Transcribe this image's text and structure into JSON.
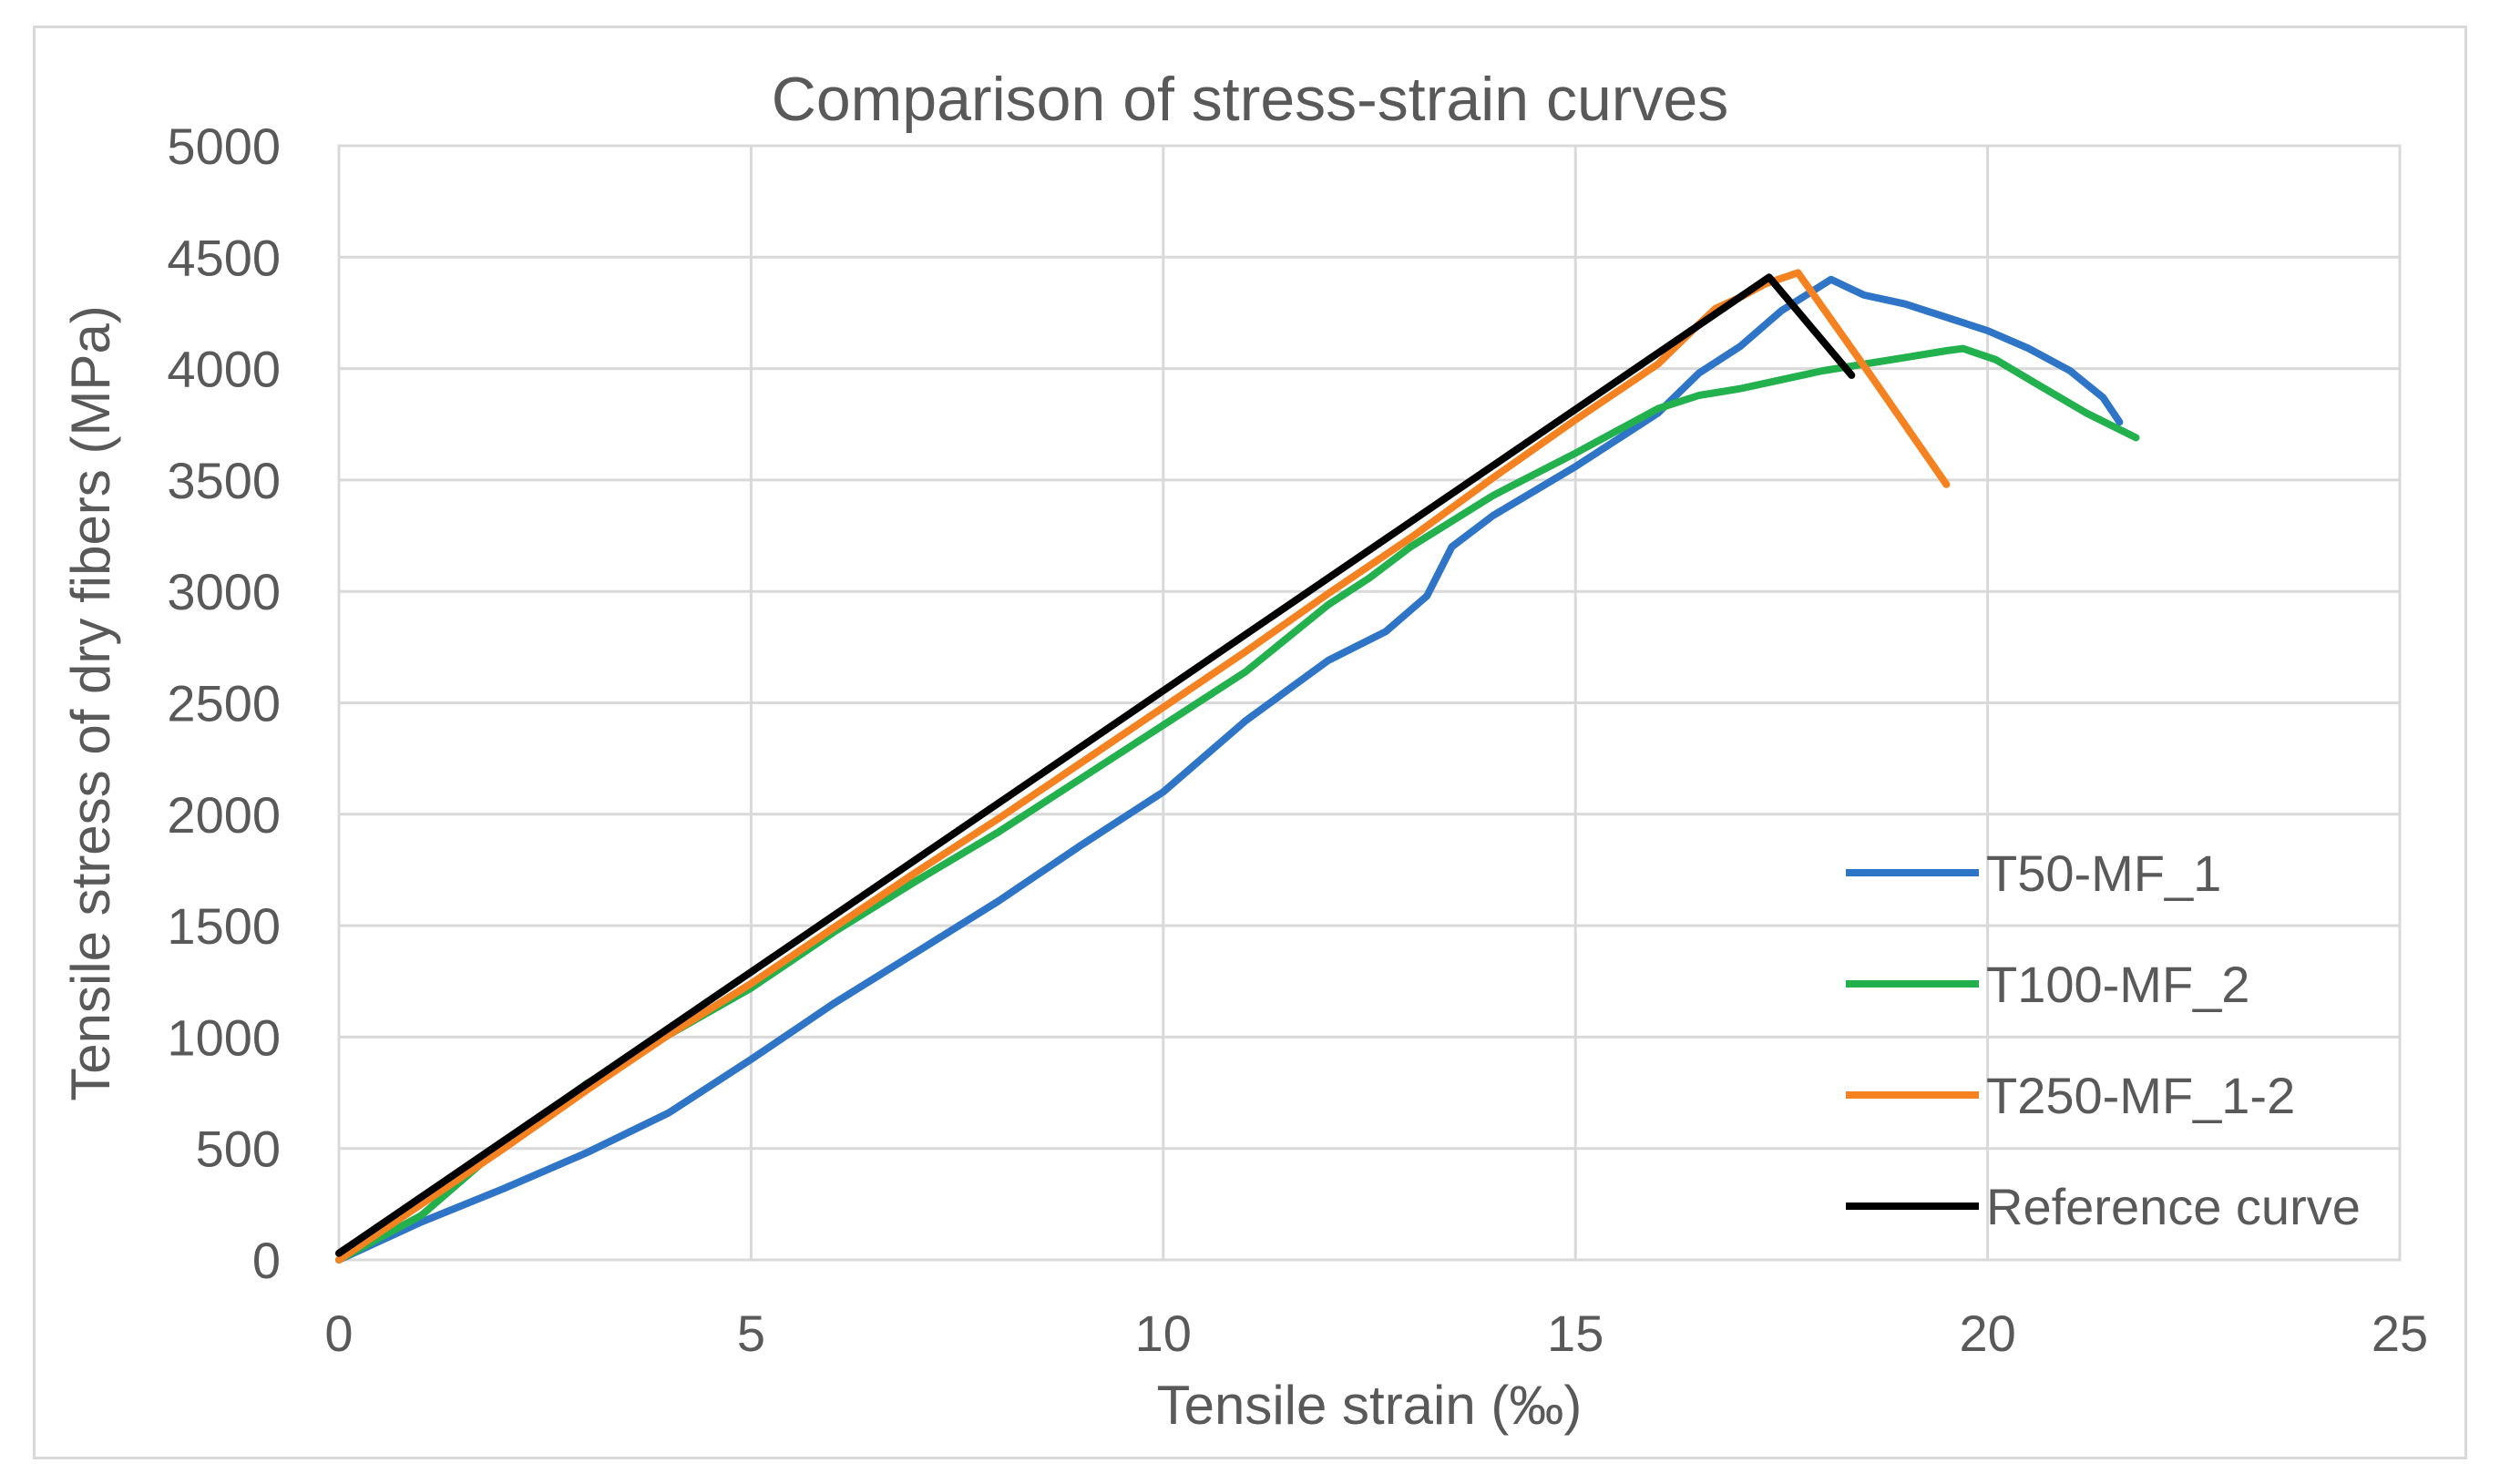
{
  "chart_data": {
    "type": "line",
    "title": "Comparison of stress-strain curves",
    "xlabel": "Tensile strain (‰)",
    "ylabel": "Tensile stress of dry fibers (MPa)",
    "xlim": [
      0,
      25
    ],
    "ylim": [
      0,
      5000
    ],
    "xticks": [
      0,
      5,
      10,
      15,
      20,
      25
    ],
    "yticks": [
      0,
      500,
      1000,
      1500,
      2000,
      2500,
      3000,
      3500,
      4000,
      4500,
      5000
    ],
    "grid": true,
    "legend_position": "bottom-right",
    "series": [
      {
        "name": "T50-MF_1",
        "color": "#2e75c8",
        "points": [
          [
            0,
            0
          ],
          [
            1,
            170
          ],
          [
            2,
            320
          ],
          [
            3,
            480
          ],
          [
            4,
            660
          ],
          [
            5,
            900
          ],
          [
            6,
            1150
          ],
          [
            7,
            1380
          ],
          [
            8,
            1610
          ],
          [
            9,
            1860
          ],
          [
            10,
            2100
          ],
          [
            11,
            2420
          ],
          [
            12,
            2690
          ],
          [
            12.7,
            2820
          ],
          [
            13.2,
            2980
          ],
          [
            13.5,
            3200
          ],
          [
            14,
            3340
          ],
          [
            15,
            3560
          ],
          [
            16,
            3800
          ],
          [
            16.5,
            3980
          ],
          [
            17,
            4100
          ],
          [
            17.5,
            4260
          ],
          [
            18.1,
            4400
          ],
          [
            18.5,
            4330
          ],
          [
            19,
            4290
          ],
          [
            19.5,
            4230
          ],
          [
            20,
            4170
          ],
          [
            20.5,
            4090
          ],
          [
            21,
            3990
          ],
          [
            21.4,
            3870
          ],
          [
            21.6,
            3760
          ]
        ]
      },
      {
        "name": "T100-MF_2",
        "color": "#22b14c",
        "points": [
          [
            0,
            0
          ],
          [
            1,
            200
          ],
          [
            2,
            520
          ],
          [
            3,
            790
          ],
          [
            4,
            1010
          ],
          [
            5,
            1220
          ],
          [
            6,
            1470
          ],
          [
            7,
            1700
          ],
          [
            8,
            1920
          ],
          [
            9,
            2160
          ],
          [
            10,
            2400
          ],
          [
            11,
            2640
          ],
          [
            12,
            2940
          ],
          [
            12.5,
            3060
          ],
          [
            13,
            3200
          ],
          [
            14,
            3430
          ],
          [
            15,
            3620
          ],
          [
            16,
            3820
          ],
          [
            16.5,
            3880
          ],
          [
            17,
            3910
          ],
          [
            17.5,
            3950
          ],
          [
            18,
            3990
          ],
          [
            18.5,
            4020
          ],
          [
            19,
            4050
          ],
          [
            19.5,
            4080
          ],
          [
            19.7,
            4090
          ],
          [
            20.1,
            4040
          ],
          [
            20.6,
            3930
          ],
          [
            21.2,
            3800
          ],
          [
            21.8,
            3690
          ]
        ]
      },
      {
        "name": "T250-MF_1-2",
        "color": "#f58220",
        "points": [
          [
            0,
            0
          ],
          [
            1,
            250
          ],
          [
            2,
            500
          ],
          [
            3,
            760
          ],
          [
            4,
            1010
          ],
          [
            5,
            1240
          ],
          [
            6,
            1490
          ],
          [
            7,
            1740
          ],
          [
            8,
            1980
          ],
          [
            9,
            2230
          ],
          [
            10,
            2480
          ],
          [
            11,
            2730
          ],
          [
            12,
            2990
          ],
          [
            13,
            3240
          ],
          [
            14,
            3510
          ],
          [
            15,
            3770
          ],
          [
            16,
            4020
          ],
          [
            16.5,
            4200
          ],
          [
            16.7,
            4270
          ],
          [
            17,
            4320
          ],
          [
            17.3,
            4380
          ],
          [
            17.7,
            4430
          ],
          [
            18.6,
            3960
          ],
          [
            19.5,
            3480
          ]
        ]
      },
      {
        "name": "Reference curve",
        "color": "#000000",
        "points": [
          [
            0,
            30
          ],
          [
            17.35,
            4410
          ],
          [
            18.35,
            3970
          ]
        ]
      }
    ]
  }
}
